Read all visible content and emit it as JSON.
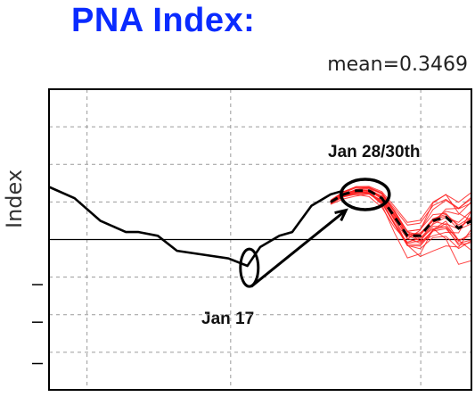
{
  "chart_data": {
    "type": "line",
    "title": "PNA Index:",
    "subtitle": "mean=0.3469",
    "ylabel": "Index",
    "xlim": [
      0,
      66
    ],
    "ylim": [
      -4,
      4
    ],
    "grid": true,
    "observed": {
      "x": [
        0,
        4,
        8,
        12,
        14,
        17,
        20,
        24,
        28,
        31,
        33,
        36,
        38,
        41,
        44,
        46
      ],
      "y": [
        1.4,
        1.1,
        0.5,
        0.2,
        0.2,
        0.1,
        -0.3,
        -0.4,
        -0.5,
        -0.7,
        -0.2,
        0.1,
        0.2,
        0.9,
        1.2,
        1.3
      ]
    },
    "ensemble_mean": {
      "x": [
        44,
        46,
        48,
        50,
        52,
        54,
        56,
        58,
        60,
        62,
        64,
        66
      ],
      "y": [
        1.0,
        1.2,
        1.3,
        1.3,
        1.1,
        0.6,
        0.1,
        0.1,
        0.5,
        0.6,
        0.3,
        0.5
      ]
    },
    "ensemble_members": {
      "color": "#ff2020",
      "count": 20,
      "spread": [
        0.1,
        0.15,
        0.2,
        0.2,
        0.3,
        0.5,
        0.7,
        0.85,
        1.0,
        1.1,
        1.2,
        1.3
      ]
    },
    "annotations": [
      {
        "text": "Jan 28/30th"
      },
      {
        "text": "Jan 17"
      }
    ]
  }
}
